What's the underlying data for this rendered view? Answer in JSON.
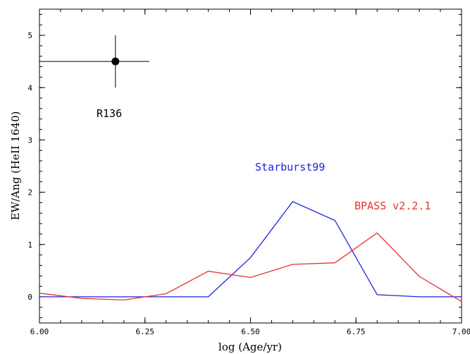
{
  "chart_data": {
    "type": "line",
    "title": "",
    "xlabel": "log (Age/yr)",
    "ylabel": "EW/Ang (HeII 1640)",
    "xlim": [
      6.0,
      7.0
    ],
    "ylim": [
      -0.5,
      5.5
    ],
    "xticks": [
      "6.00",
      "6.25",
      "6.50",
      "6.75",
      "7.00"
    ],
    "yticks": [
      "0",
      "1",
      "2",
      "3",
      "4",
      "5"
    ],
    "grid": false,
    "series": [
      {
        "name": "Starburst99",
        "color": "#1f22e0",
        "x": [
          6.0,
          6.1,
          6.2,
          6.3,
          6.4,
          6.5,
          6.6,
          6.7,
          6.8,
          6.9,
          7.0
        ],
        "y": [
          0.0,
          0.0,
          0.0,
          0.0,
          0.0,
          0.75,
          1.82,
          1.46,
          0.04,
          0.0,
          0.0
        ]
      },
      {
        "name": "BPASS v2.2.1",
        "color": "#e53333",
        "x": [
          6.0,
          6.1,
          6.2,
          6.3,
          6.4,
          6.5,
          6.6,
          6.7,
          6.8,
          6.9,
          7.0
        ],
        "y": [
          0.07,
          -0.03,
          -0.06,
          0.06,
          0.49,
          0.37,
          0.62,
          0.65,
          1.22,
          0.39,
          -0.09
        ]
      }
    ],
    "point": {
      "name": "R136",
      "x": 6.18,
      "y": 4.5,
      "xerr": [
        6.0,
        6.26
      ],
      "yerr": [
        4.0,
        5.0
      ],
      "color": "#000000"
    }
  }
}
